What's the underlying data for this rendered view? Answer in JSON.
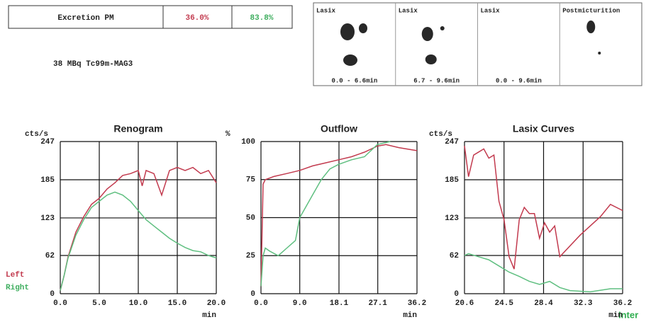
{
  "header": {
    "label": "Excretion PM",
    "left": "36.0%",
    "right": "83.8%"
  },
  "note": "38 MBq Tc99m-MAG3",
  "images": [
    {
      "label": "Lasix",
      "time": "0.0 -  6.6min"
    },
    {
      "label": "Lasix",
      "time": "6.7 -  9.6min"
    },
    {
      "label": "Lasix",
      "time": "0.0 -  9.6min"
    },
    {
      "label": "Postmicturition"
    }
  ],
  "status": "Inter",
  "chart_data": [
    {
      "type": "line",
      "title": "Renogram",
      "ylabel": "cts/s",
      "xlabel": "min",
      "xlim": [
        0,
        20
      ],
      "ylim": [
        0,
        247
      ],
      "xticks": [
        {
          "value": 0,
          "label": "0.0"
        },
        {
          "value": 5,
          "label": "5.0"
        },
        {
          "value": 10,
          "label": "10.0"
        },
        {
          "value": 15,
          "label": "15.0"
        },
        {
          "value": 20,
          "label": "20.0"
        }
      ],
      "yticks": [
        0,
        62,
        123,
        185,
        247
      ],
      "grid": true,
      "series": [
        {
          "name": "Left",
          "color": "#c23a4e",
          "x": [
            0,
            0.5,
            1,
            2,
            3,
            4,
            5,
            6,
            7,
            8,
            9,
            10,
            10.5,
            11,
            12,
            13,
            14,
            15,
            16,
            17,
            18,
            19,
            20
          ],
          "values": [
            5,
            30,
            60,
            100,
            125,
            145,
            155,
            170,
            180,
            192,
            195,
            200,
            175,
            200,
            195,
            160,
            200,
            205,
            200,
            205,
            195,
            200,
            180
          ]
        },
        {
          "name": "Right",
          "color": "#5fbf80",
          "x": [
            0,
            0.5,
            1,
            2,
            3,
            4,
            5,
            6,
            7,
            8,
            9,
            10,
            11,
            12,
            13,
            14,
            15,
            16,
            17,
            18,
            19,
            20
          ],
          "values": [
            5,
            30,
            58,
            95,
            120,
            140,
            150,
            160,
            165,
            160,
            150,
            135,
            120,
            110,
            100,
            90,
            82,
            75,
            70,
            68,
            62,
            58
          ]
        }
      ]
    },
    {
      "type": "line",
      "title": "Outflow",
      "ylabel": "%",
      "xlabel": "min",
      "xlim": [
        0,
        36.2
      ],
      "ylim": [
        0,
        100
      ],
      "xticks": [
        {
          "value": 0,
          "label": "0.0"
        },
        {
          "value": 9,
          "label": "9.0"
        },
        18.1,
        27.1,
        36.2
      ],
      "yticks": [
        0,
        25,
        50,
        75,
        100
      ],
      "grid": true,
      "series": [
        {
          "color": "#c23a4e",
          "x": [
            0,
            0.5,
            1,
            3,
            6,
            9,
            12,
            15,
            18,
            21,
            24,
            27,
            29,
            32,
            36.2
          ],
          "values": [
            5,
            72,
            75,
            77,
            79,
            81,
            84,
            86,
            88,
            90,
            93,
            97,
            98,
            96,
            94
          ]
        },
        {
          "color": "#5fbf80",
          "x": [
            0,
            0.5,
            1,
            2,
            4,
            6,
            8,
            9,
            10,
            12,
            14,
            16,
            18,
            21,
            24,
            27,
            30
          ],
          "values": [
            5,
            25,
            30,
            28,
            25,
            30,
            35,
            50,
            55,
            65,
            75,
            82,
            85,
            88,
            90,
            98,
            100
          ]
        }
      ]
    },
    {
      "type": "line",
      "title": "Lasix Curves",
      "ylabel": "cts/s",
      "xlabel": "min",
      "xlim": [
        20.6,
        36.2
      ],
      "ylim": [
        0,
        247
      ],
      "xticks": [
        20.6,
        24.5,
        28.4,
        32.3,
        36.2
      ],
      "yticks": [
        0,
        62,
        123,
        185,
        247
      ],
      "grid": true,
      "series": [
        {
          "color": "#c23a4e",
          "x": [
            20.6,
            21,
            21.5,
            22,
            22.5,
            23,
            23.5,
            24,
            24.5,
            25,
            25.5,
            26,
            26.5,
            27,
            27.5,
            28,
            28.5,
            29,
            29.5,
            30,
            32,
            34,
            35,
            36.2
          ],
          "values": [
            240,
            190,
            225,
            230,
            235,
            220,
            225,
            150,
            120,
            60,
            40,
            120,
            140,
            130,
            130,
            90,
            115,
            100,
            110,
            60,
            95,
            125,
            145,
            135
          ]
        },
        {
          "color": "#5fbf80",
          "x": [
            20.6,
            21,
            22,
            23,
            24,
            25,
            26,
            27,
            28,
            29,
            30,
            31,
            33,
            35,
            36.2
          ],
          "values": [
            62,
            65,
            60,
            55,
            45,
            35,
            28,
            20,
            15,
            20,
            10,
            5,
            3,
            8,
            8
          ]
        }
      ]
    }
  ]
}
